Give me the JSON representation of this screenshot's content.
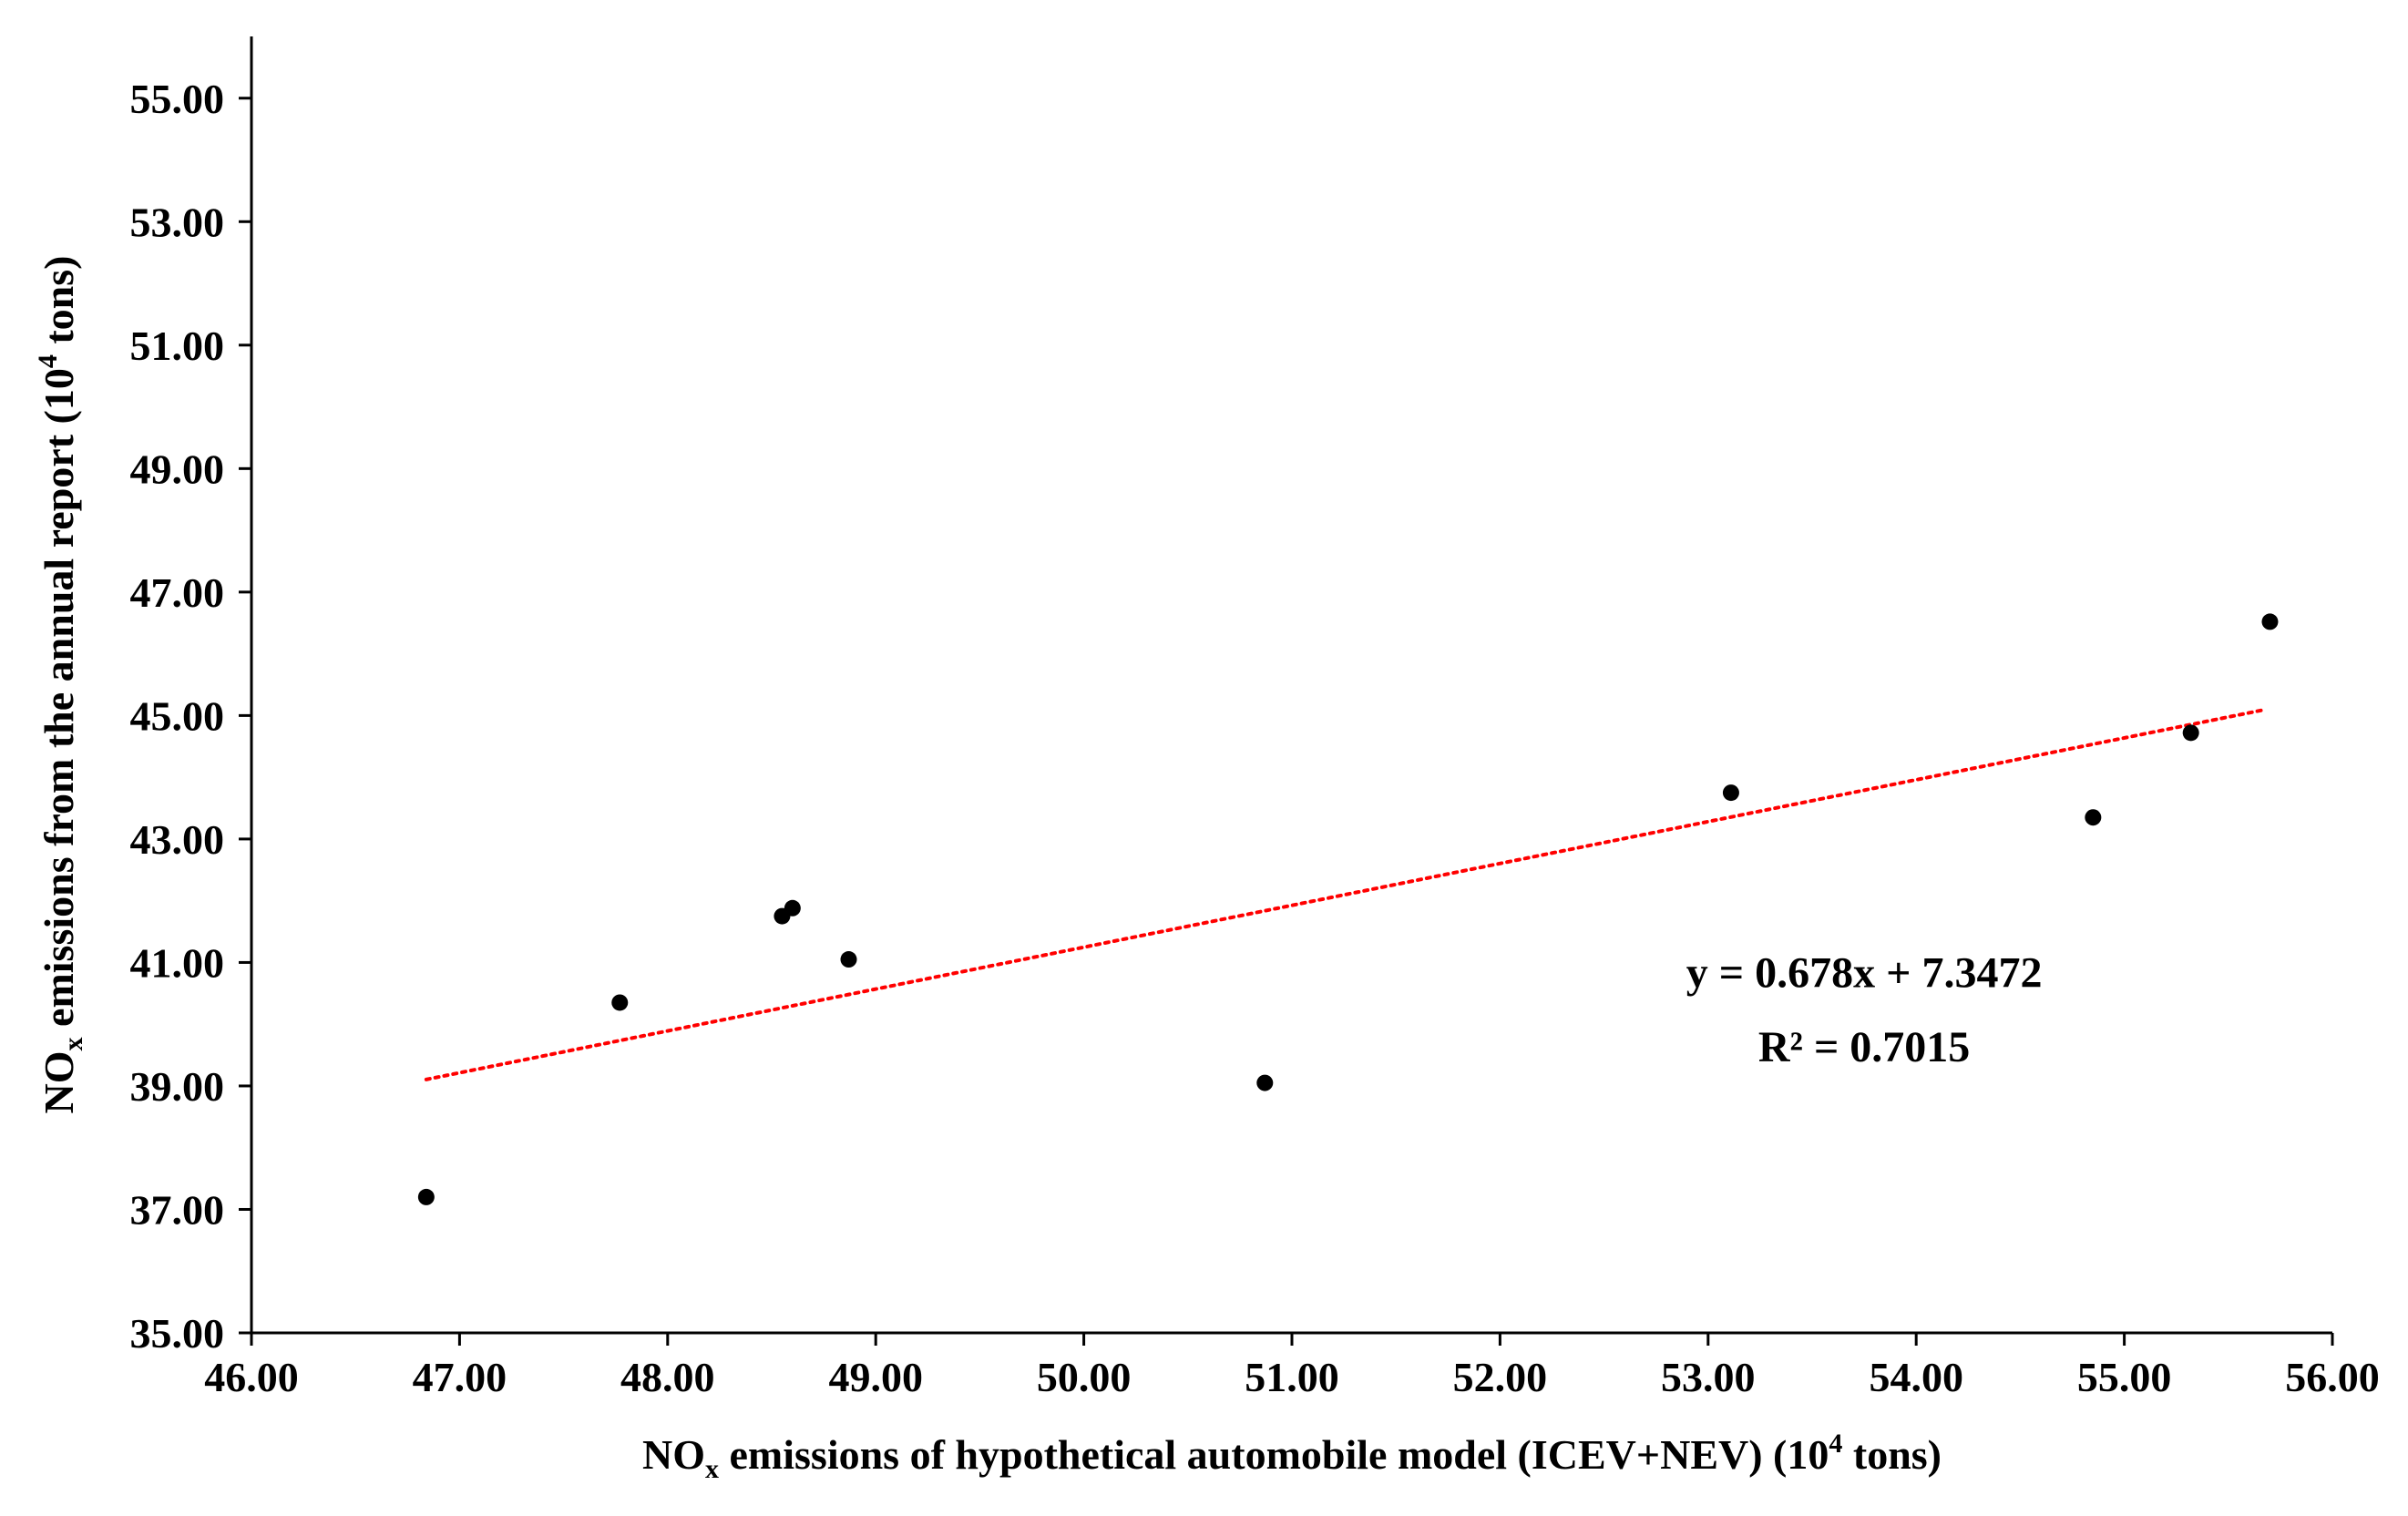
{
  "chart_data": {
    "type": "scatter",
    "xlabel": {
      "pre": "NO",
      "sub": "x",
      "mid": " emissions of hypothetical automobile model (ICEV+NEV) (10",
      "sup": "4",
      "post": " tons)"
    },
    "ylabel": {
      "pre": "NO",
      "sub": "x",
      "mid": " emissions from the annual report (10",
      "sup": "4",
      "post": " tons)"
    },
    "xlim": [
      46.0,
      56.0
    ],
    "ylim": [
      35.0,
      56.0
    ],
    "xticks": [
      46.0,
      47.0,
      48.0,
      49.0,
      50.0,
      51.0,
      52.0,
      53.0,
      54.0,
      55.0,
      56.0
    ],
    "xtick_labels": [
      "46.00",
      "47.00",
      "48.00",
      "49.00",
      "50.00",
      "51.00",
      "52.00",
      "53.00",
      "54.00",
      "55.00",
      "56.00"
    ],
    "yticks": [
      35.0,
      37.0,
      39.0,
      41.0,
      43.0,
      45.0,
      47.0,
      49.0,
      51.0,
      53.0,
      55.0
    ],
    "ytick_labels": [
      "35.00",
      "37.00",
      "39.00",
      "41.00",
      "43.00",
      "45.00",
      "47.00",
      "49.00",
      "51.00",
      "53.00",
      "55.00"
    ],
    "grid": false,
    "series": [
      {
        "color": "#000000",
        "x": [
          46.84,
          47.77,
          48.55,
          48.6,
          48.87,
          50.87,
          53.11,
          54.85,
          55.32,
          55.7
        ],
        "y": [
          37.2,
          40.35,
          41.75,
          41.88,
          41.05,
          39.05,
          43.75,
          43.35,
          44.72,
          46.52
        ]
      }
    ],
    "trendline": {
      "type": "linear",
      "slope": 0.678,
      "intercept": 7.3472,
      "x_range": [
        46.84,
        55.66
      ],
      "color": "#ff0000",
      "style": "dotted"
    },
    "annotations": [
      "y = 0.678x + 7.3472",
      "R² = 0.7015"
    ]
  }
}
